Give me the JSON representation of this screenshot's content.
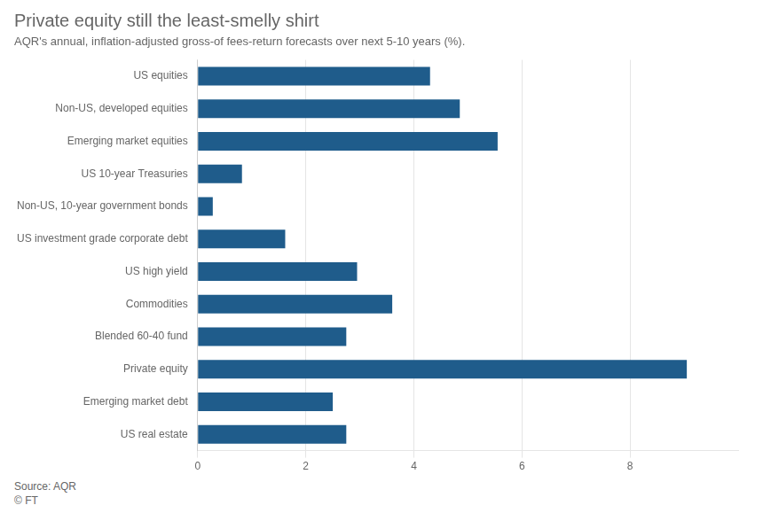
{
  "chart_data": {
    "type": "bar",
    "orientation": "horizontal",
    "title": "Private equity still the least-smelly shirt",
    "subtitle": "AQR's annual, inflation-adjusted gross-of fees-return forecasts over next 5-10 years (%).",
    "annotations": [
      "Source: AQR",
      "© FT"
    ],
    "categories": [
      "US equities",
      "Non-US, developed equities",
      "Emerging market equities",
      "US 10-year Treasuries",
      "Non-US, 10-year government bonds",
      "US investment grade corporate debt",
      "US high yield",
      "Commodities",
      "Blended 60-40 fund",
      "Private equity",
      "Emerging market debt",
      "US real estate"
    ],
    "values": [
      4.3,
      4.85,
      5.55,
      0.82,
      0.28,
      1.62,
      2.95,
      3.6,
      2.75,
      9.05,
      2.5,
      2.75
    ],
    "color": "#1f5c8b",
    "xlim": [
      0,
      10
    ],
    "xticks": [
      0,
      2,
      4,
      6,
      8
    ],
    "grid": true
  }
}
